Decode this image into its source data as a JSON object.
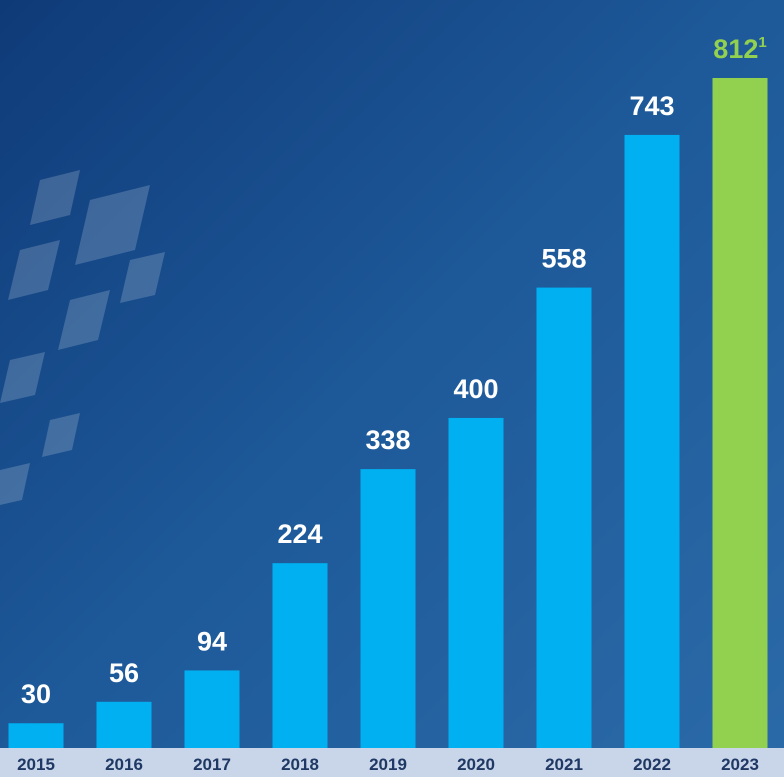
{
  "chart_data": {
    "type": "bar",
    "categories": [
      "2015",
      "2016",
      "2017",
      "2018",
      "2019",
      "2020",
      "2021",
      "2022",
      "2023"
    ],
    "values": [
      30,
      56,
      94,
      224,
      338,
      400,
      558,
      743,
      812
    ],
    "colors": [
      "#00b0f0",
      "#00b0f0",
      "#00b0f0",
      "#00b0f0",
      "#00b0f0",
      "#00b0f0",
      "#00b0f0",
      "#00b0f0",
      "#92d050"
    ],
    "footnote_refs": [
      null,
      null,
      null,
      null,
      null,
      null,
      null,
      null,
      "1"
    ]
  }
}
